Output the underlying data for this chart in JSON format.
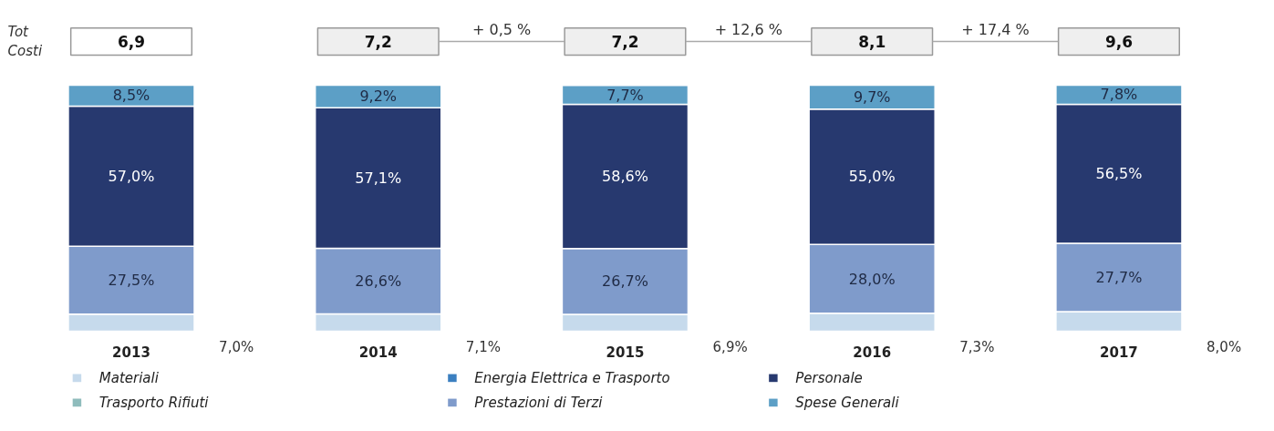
{
  "chart_data": {
    "type": "bar",
    "stacked": true,
    "legend": "bottom",
    "grid": false,
    "categories": [
      "2013",
      "2014",
      "2015",
      "2016",
      "2017"
    ],
    "series": [
      {
        "name": "Materiali",
        "color": "#c6daec",
        "values": [
          7.0,
          7.1,
          6.9,
          7.3,
          8.0
        ],
        "value_labels": [
          "7,0%",
          "7,1%",
          "6,9%",
          "7,3%",
          "8,0%"
        ]
      },
      {
        "name": "Trasporto Rifiuti",
        "color": "#8fbcbc",
        "values": [
          null,
          null,
          null,
          null,
          null
        ]
      },
      {
        "name": "Energia Elettrica e Trasporto",
        "color": "#3b7fc0",
        "values": [
          null,
          null,
          null,
          null,
          null
        ]
      },
      {
        "name": "Prestazioni di Terzi",
        "color": "#7f9bcb",
        "values": [
          27.5,
          26.6,
          26.7,
          28.0,
          27.7
        ],
        "value_labels": [
          "27,5%",
          "26,6%",
          "26,7%",
          "28,0%",
          "27,7%"
        ]
      },
      {
        "name": "Personale",
        "color": "#27396f",
        "values": [
          57.0,
          57.1,
          58.6,
          55.0,
          56.5
        ],
        "value_labels": [
          "57,0%",
          "57,1%",
          "58,6%",
          "55,0%",
          "56,5%"
        ]
      },
      {
        "name": "Spese Generali",
        "color": "#5c9fc6",
        "values": [
          8.5,
          9.2,
          7.7,
          9.7,
          7.8
        ],
        "value_labels": [
          "8,5%",
          "9,2%",
          "7,7%",
          "9,7%",
          "7,8%"
        ]
      }
    ],
    "annotations": [
      "Tot\nCosti",
      "6,9",
      "7,2",
      "7,2",
      "8,1",
      "9,6",
      "+ 0,5 %",
      "+ 12,6 %",
      "+ 17,4 %"
    ]
  }
}
